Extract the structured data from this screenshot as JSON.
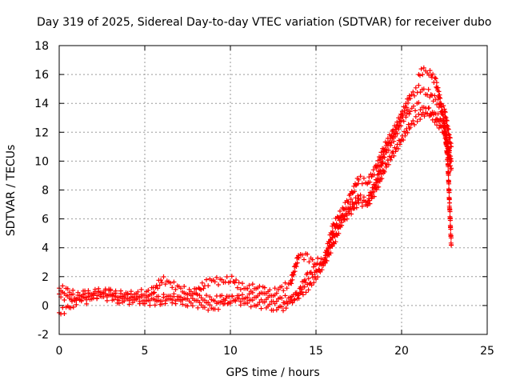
{
  "chart_data": {
    "type": "scatter",
    "title": "Day 319 of 2025, Sidereal Day-to-day VTEC variation (SDTVAR) for receiver dubo",
    "xlabel": "GPS time / hours",
    "ylabel": "SDTVAR / TECUs",
    "xlim": [
      0,
      25
    ],
    "ylim": [
      -2,
      18
    ],
    "x_ticks": [
      0,
      5,
      10,
      15,
      20,
      25
    ],
    "y_ticks": [
      -2,
      0,
      2,
      4,
      6,
      8,
      10,
      12,
      14,
      16,
      18
    ],
    "grid": true,
    "marker": "+",
    "series": [
      {
        "name": "trace-1",
        "color": "#ff0000",
        "points": [
          [
            0,
            0.8
          ],
          [
            0.5,
            0.5
          ],
          [
            1,
            0.6
          ],
          [
            1.5,
            0.3
          ],
          [
            2,
            0.6
          ],
          [
            2.5,
            0.9
          ],
          [
            3,
            0.8
          ],
          [
            3.5,
            0.6
          ],
          [
            4,
            0.6
          ],
          [
            4.5,
            0.5
          ],
          [
            5,
            0.5
          ],
          [
            5.5,
            0.6
          ],
          [
            6,
            0.5
          ],
          [
            6.5,
            0.6
          ],
          [
            7,
            0.5
          ],
          [
            7.5,
            0.7
          ],
          [
            8,
            0.6
          ],
          [
            8.5,
            0.5
          ],
          [
            9,
            0.4
          ],
          [
            9.5,
            0.5
          ],
          [
            10,
            0.4
          ],
          [
            10.5,
            0.5
          ],
          [
            11,
            0.6
          ],
          [
            11.5,
            0.7
          ],
          [
            12,
            0.6
          ],
          [
            12.5,
            0.5
          ],
          [
            13,
            0.4
          ],
          [
            13.5,
            0.5
          ],
          [
            14,
            0.7
          ],
          [
            14.5,
            1.2
          ],
          [
            15,
            2.0
          ],
          [
            15.5,
            3.0
          ],
          [
            16,
            4.8
          ],
          [
            16.5,
            6.0
          ],
          [
            17,
            6.8
          ],
          [
            17.5,
            7.5
          ],
          [
            18,
            7.2
          ],
          [
            18.5,
            8.5
          ],
          [
            19,
            10.5
          ],
          [
            19.5,
            11.5
          ],
          [
            20,
            12.8
          ],
          [
            20.5,
            13.6
          ],
          [
            21,
            13.8
          ],
          [
            21.5,
            13.5
          ],
          [
            22,
            12.8
          ],
          [
            22.5,
            12.0
          ],
          [
            22.9,
            10.0
          ]
        ]
      },
      {
        "name": "trace-2",
        "color": "#ff0000",
        "points": [
          [
            0,
            -0.5
          ],
          [
            0.5,
            -0.2
          ],
          [
            1,
            0.3
          ],
          [
            1.5,
            0.6
          ],
          [
            2,
            0.8
          ],
          [
            2.5,
            0.7
          ],
          [
            3,
            0.5
          ],
          [
            3.5,
            0.4
          ],
          [
            4,
            0.3
          ],
          [
            4.5,
            0.4
          ],
          [
            5,
            0.3
          ],
          [
            5.5,
            0.2
          ],
          [
            6,
            0.3
          ],
          [
            6.5,
            0.4
          ],
          [
            7,
            0.3
          ],
          [
            7.5,
            0.2
          ],
          [
            8,
            0.1
          ],
          [
            8.5,
            0.0
          ],
          [
            9,
            -0.2
          ],
          [
            9.5,
            0.1
          ],
          [
            10,
            0.5
          ],
          [
            10.5,
            0.3
          ],
          [
            11,
            0.2
          ],
          [
            11.5,
            0.1
          ],
          [
            12,
            0.0
          ],
          [
            12.5,
            -0.1
          ],
          [
            13,
            -0.2
          ],
          [
            13.5,
            0.2
          ],
          [
            14,
            1.0
          ],
          [
            14.5,
            2.0
          ],
          [
            15,
            2.6
          ],
          [
            15.5,
            3.0
          ],
          [
            16,
            4.2
          ],
          [
            16.5,
            5.8
          ],
          [
            17,
            6.5
          ],
          [
            17.5,
            7.2
          ],
          [
            18,
            7.0
          ],
          [
            18.5,
            8.0
          ],
          [
            19,
            9.5
          ],
          [
            19.5,
            10.5
          ],
          [
            20,
            11.5
          ],
          [
            20.5,
            12.5
          ],
          [
            21,
            13.0
          ],
          [
            21.5,
            13.5
          ],
          [
            22,
            13.2
          ],
          [
            22.5,
            12.5
          ],
          [
            22.9,
            9.5
          ]
        ]
      },
      {
        "name": "trace-3",
        "color": "#ff0000",
        "points": [
          [
            0,
            1.2
          ],
          [
            0.5,
            1.0
          ],
          [
            1,
            0.7
          ],
          [
            1.5,
            0.8
          ],
          [
            2,
            0.9
          ],
          [
            2.5,
            1.0
          ],
          [
            3,
            0.9
          ],
          [
            3.5,
            0.8
          ],
          [
            4,
            0.7
          ],
          [
            4.5,
            0.8
          ],
          [
            5,
            0.9
          ],
          [
            5.5,
            1.0
          ],
          [
            6,
            1.8
          ],
          [
            6.5,
            1.5
          ],
          [
            7,
            1.2
          ],
          [
            7.5,
            1.0
          ],
          [
            8,
            0.9
          ],
          [
            8.5,
            1.5
          ],
          [
            9,
            1.8
          ],
          [
            9.5,
            1.6
          ],
          [
            10,
            1.9
          ],
          [
            10.5,
            1.4
          ],
          [
            11,
            1.2
          ],
          [
            11.5,
            1.3
          ],
          [
            12,
            1.0
          ],
          [
            12.5,
            0.9
          ],
          [
            13,
            1.2
          ],
          [
            13.5,
            1.5
          ],
          [
            14,
            3.5
          ],
          [
            14.5,
            3.3
          ],
          [
            15,
            3.0
          ],
          [
            15.5,
            3.2
          ],
          [
            16,
            5.5
          ],
          [
            16.5,
            6.5
          ],
          [
            17,
            7.5
          ],
          [
            17.5,
            8.8
          ],
          [
            18,
            8.5
          ],
          [
            18.5,
            9.5
          ],
          [
            19,
            11.0
          ],
          [
            19.5,
            12.0
          ],
          [
            20,
            13.2
          ],
          [
            20.5,
            14.5
          ],
          [
            21,
            15.0
          ],
          [
            21.5,
            14.8
          ],
          [
            22,
            14.2
          ],
          [
            22.5,
            13.5
          ],
          [
            22.9,
            11.0
          ]
        ]
      },
      {
        "name": "trace-4",
        "color": "#ff0000",
        "points": [
          [
            21,
            16.0
          ],
          [
            21.3,
            16.3
          ],
          [
            21.6,
            16.2
          ],
          [
            22,
            15.5
          ],
          [
            22.2,
            14.5
          ],
          [
            22.5,
            12.5
          ],
          [
            22.7,
            10.0
          ],
          [
            22.8,
            7.0
          ],
          [
            22.9,
            4.2
          ]
        ]
      }
    ]
  }
}
